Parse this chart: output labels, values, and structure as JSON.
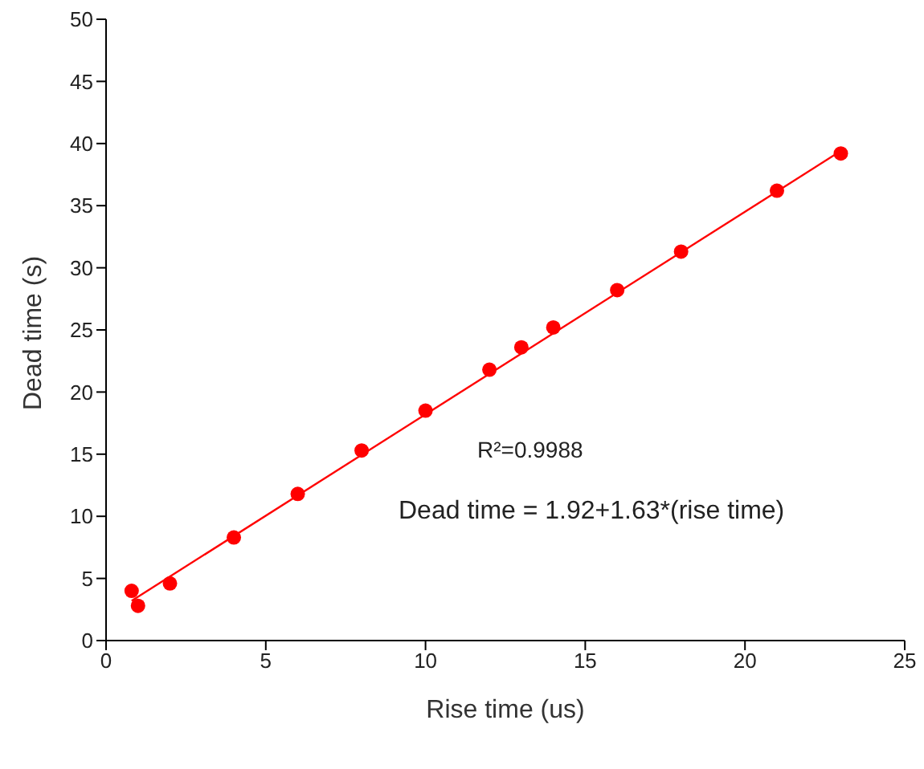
{
  "chart_data": {
    "type": "scatter",
    "xlabel": "Rise time (us)",
    "ylabel": "Dead time (s)",
    "xlim": [
      0,
      25
    ],
    "xticks": [
      0,
      5,
      10,
      15,
      20,
      25
    ],
    "ylim": [
      0,
      50
    ],
    "yticks": [
      0,
      5,
      10,
      15,
      20,
      25,
      30,
      35,
      40,
      45,
      50
    ],
    "grid": false,
    "legend": false,
    "marker": "circle",
    "x": [
      0.8,
      1.0,
      2,
      4,
      6,
      8,
      10,
      12,
      13,
      14,
      16,
      18,
      21,
      23
    ],
    "series": [
      {
        "color": "#ff0000",
        "values": [
          4.0,
          2.8,
          4.6,
          8.3,
          11.8,
          15.3,
          18.5,
          21.8,
          23.6,
          25.2,
          28.2,
          31.3,
          36.2,
          39.2
        ]
      },
      {
        "type": "line",
        "color": "#ff0000",
        "marker": "none",
        "x": [
          0.8,
          23
        ],
        "values": [
          3.2,
          39.4
        ]
      }
    ],
    "annotations": [
      "R²=0.9988",
      "Dead time =  1.92+1.63*(rise time)"
    ]
  }
}
